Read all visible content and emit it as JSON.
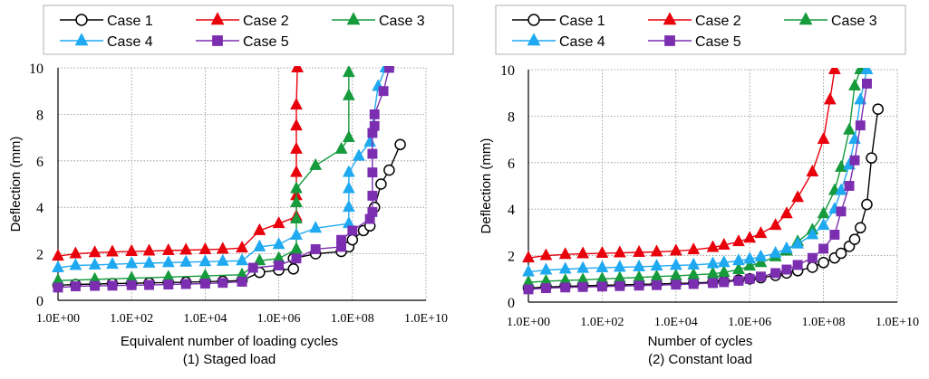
{
  "figure": {
    "panels": [
      {
        "xlabel": "Equivalent number of loading cycles",
        "caption": "(1) Staged load"
      },
      {
        "xlabel": "Number of cycles",
        "caption": "(2) Constant load"
      }
    ]
  },
  "chart_data": [
    {
      "type": "line",
      "title": "",
      "xlabel": "Equivalent number of loading cycles",
      "ylabel": "Deflection (mm)",
      "caption": "(1) Staged load",
      "xscale": "log",
      "xlim": [
        1,
        10000000000
      ],
      "ylim": [
        0,
        10
      ],
      "xticks": [
        "1.0E+00",
        "1.0E+02",
        "1.0E+04",
        "1.0E+06",
        "1.0E+08",
        "1.0E+10"
      ],
      "yticks": [
        "0",
        "2",
        "4",
        "6",
        "8",
        "10"
      ],
      "grid": true,
      "legend": "top, outside plot, 3 columns",
      "series": [
        {
          "name": "Case 1",
          "color": "#000000",
          "marker": "circle-open",
          "x": [
            1,
            3,
            10,
            30,
            100,
            300,
            1000,
            3000,
            10000,
            30000,
            100000,
            300000,
            1000000,
            2500000,
            2500000,
            10000000,
            50000000,
            80000000,
            100000000,
            200000000,
            300000000,
            400000000,
            600000000,
            1000000000,
            2000000000
          ],
          "y": [
            0.65,
            0.68,
            0.7,
            0.72,
            0.73,
            0.75,
            0.76,
            0.78,
            0.8,
            0.82,
            0.85,
            1.2,
            1.3,
            1.35,
            1.8,
            2.0,
            2.1,
            2.3,
            2.6,
            3.0,
            3.2,
            4.0,
            5.0,
            5.6,
            6.7
          ]
        },
        {
          "name": "Case 2",
          "color": "#e8000b",
          "marker": "triangle",
          "x": [
            1,
            3,
            10,
            30,
            100,
            300,
            1000,
            3000,
            10000,
            30000,
            100000,
            300000,
            1000000,
            3000000,
            3000000,
            3000000,
            3000000,
            3000000,
            3000000,
            3200000
          ],
          "y": [
            1.9,
            2.0,
            2.05,
            2.08,
            2.1,
            2.12,
            2.14,
            2.16,
            2.18,
            2.2,
            2.25,
            3.0,
            3.3,
            3.6,
            4.5,
            5.5,
            6.5,
            7.5,
            8.4,
            10
          ]
        },
        {
          "name": "Case 3",
          "color": "#159a3c",
          "marker": "triangle",
          "x": [
            1,
            10,
            100,
            1000,
            10000,
            100000,
            300000,
            1000000,
            3000000,
            3000000,
            3000000,
            3000000,
            10000000,
            50000000,
            80000000,
            80000000,
            80000000
          ],
          "y": [
            0.85,
            0.9,
            0.95,
            1.0,
            1.05,
            1.1,
            1.7,
            1.8,
            2.2,
            3.5,
            4.2,
            4.8,
            5.8,
            6.5,
            7.0,
            8.8,
            9.8
          ]
        },
        {
          "name": "Case 4",
          "color": "#1fa9f0",
          "marker": "triangle",
          "x": [
            1,
            3,
            10,
            30,
            100,
            300,
            1000,
            3000,
            10000,
            30000,
            100000,
            300000,
            1000000,
            3000000,
            10000000,
            80000000,
            80000000,
            80000000,
            80000000,
            150000000,
            300000000,
            500000000,
            800000000
          ],
          "y": [
            1.4,
            1.5,
            1.52,
            1.55,
            1.58,
            1.6,
            1.62,
            1.64,
            1.66,
            1.68,
            1.7,
            2.3,
            2.4,
            2.8,
            3.1,
            3.3,
            4.0,
            4.8,
            5.5,
            6.2,
            6.8,
            9.2,
            10
          ]
        },
        {
          "name": "Case 5",
          "color": "#7b2eb0",
          "marker": "square",
          "x": [
            1,
            3,
            10,
            30,
            100,
            300,
            1000,
            3000,
            10000,
            30000,
            100000,
            200000,
            1000000,
            3000000,
            10000000,
            50000000,
            50000000,
            100000000,
            300000000,
            350000000,
            350000000,
            350000000,
            350000000,
            350000000,
            400000000,
            400000000,
            700000000,
            1000000000
          ],
          "y": [
            0.55,
            0.6,
            0.62,
            0.63,
            0.65,
            0.66,
            0.68,
            0.7,
            0.72,
            0.75,
            0.8,
            1.4,
            1.5,
            1.8,
            2.2,
            2.3,
            2.6,
            3.0,
            3.5,
            3.8,
            4.5,
            5.5,
            6.3,
            7.2,
            7.5,
            8.0,
            9.0,
            10
          ]
        }
      ]
    },
    {
      "type": "line",
      "title": "",
      "xlabel": "Number of cycles",
      "ylabel": "Deflection (mm)",
      "caption": "(2) Constant load",
      "xscale": "log",
      "xlim": [
        1,
        10000000000
      ],
      "ylim": [
        0,
        10
      ],
      "xticks": [
        "1.0E+00",
        "1.0E+02",
        "1.0E+04",
        "1.0E+06",
        "1.0E+08",
        "1.0E+10"
      ],
      "yticks": [
        "0",
        "2",
        "4",
        "6",
        "8",
        "10"
      ],
      "grid": true,
      "legend": "top, outside plot, 3 columns",
      "series": [
        {
          "name": "Case 1",
          "color": "#000000",
          "marker": "circle-open",
          "x": [
            1,
            3,
            10,
            30,
            100,
            300,
            1000,
            3000,
            10000,
            30000,
            100000,
            200000,
            500000,
            1000000,
            2000000,
            5000000,
            10000000,
            20000000,
            50000000,
            100000000,
            200000000,
            300000000,
            500000000,
            700000000,
            1000000000,
            1500000000,
            2000000000,
            3000000000
          ],
          "y": [
            0.6,
            0.65,
            0.68,
            0.7,
            0.72,
            0.74,
            0.76,
            0.78,
            0.8,
            0.82,
            0.86,
            0.9,
            0.95,
            1.0,
            1.05,
            1.15,
            1.25,
            1.35,
            1.5,
            1.7,
            1.9,
            2.1,
            2.4,
            2.7,
            3.2,
            4.2,
            6.2,
            8.3
          ]
        },
        {
          "name": "Case 2",
          "color": "#e8000b",
          "marker": "triangle",
          "x": [
            1,
            3,
            10,
            30,
            100,
            300,
            1000,
            3000,
            10000,
            30000,
            100000,
            200000,
            500000,
            1000000,
            2000000,
            5000000,
            10000000,
            20000000,
            50000000,
            100000000,
            150000000,
            200000000
          ],
          "y": [
            1.9,
            2.0,
            2.05,
            2.08,
            2.1,
            2.12,
            2.14,
            2.16,
            2.2,
            2.25,
            2.35,
            2.45,
            2.6,
            2.75,
            2.95,
            3.3,
            3.8,
            4.5,
            5.6,
            7.0,
            8.7,
            10
          ]
        },
        {
          "name": "Case 3",
          "color": "#159a3c",
          "marker": "triangle",
          "x": [
            1,
            3,
            10,
            30,
            100,
            300,
            1000,
            3000,
            10000,
            30000,
            100000,
            200000,
            500000,
            1000000,
            2000000,
            5000000,
            10000000,
            20000000,
            50000000,
            100000000,
            200000000,
            300000000,
            500000000,
            700000000,
            1000000000
          ],
          "y": [
            0.85,
            0.9,
            0.93,
            0.96,
            1.0,
            1.03,
            1.06,
            1.1,
            1.13,
            1.17,
            1.22,
            1.28,
            1.4,
            1.55,
            1.7,
            1.95,
            2.2,
            2.6,
            3.1,
            3.8,
            4.8,
            5.8,
            7.4,
            9.3,
            10
          ]
        },
        {
          "name": "Case 4",
          "color": "#1fa9f0",
          "marker": "triangle",
          "x": [
            1,
            3,
            10,
            30,
            100,
            300,
            1000,
            3000,
            10000,
            30000,
            100000,
            200000,
            500000,
            1000000,
            2000000,
            5000000,
            10000000,
            20000000,
            50000000,
            100000000,
            200000000,
            300000000,
            500000000,
            700000000,
            1000000000,
            1500000000
          ],
          "y": [
            1.3,
            1.38,
            1.42,
            1.45,
            1.48,
            1.5,
            1.52,
            1.55,
            1.58,
            1.6,
            1.65,
            1.7,
            1.78,
            1.85,
            1.95,
            2.1,
            2.3,
            2.5,
            2.9,
            3.3,
            4.0,
            4.8,
            5.9,
            7.0,
            8.7,
            10
          ]
        },
        {
          "name": "Case 5",
          "color": "#7b2eb0",
          "marker": "square",
          "x": [
            1,
            3,
            10,
            30,
            100,
            300,
            1000,
            3000,
            10000,
            30000,
            100000,
            200000,
            500000,
            1000000,
            2000000,
            5000000,
            10000000,
            20000000,
            50000000,
            100000000,
            200000000,
            300000000,
            500000000,
            700000000,
            1000000000,
            1500000000
          ],
          "y": [
            0.55,
            0.6,
            0.63,
            0.65,
            0.67,
            0.69,
            0.71,
            0.73,
            0.75,
            0.78,
            0.82,
            0.86,
            0.92,
            1.0,
            1.1,
            1.25,
            1.4,
            1.6,
            1.9,
            2.3,
            2.9,
            3.9,
            5.0,
            6.1,
            7.6,
            9.4
          ]
        }
      ]
    }
  ]
}
